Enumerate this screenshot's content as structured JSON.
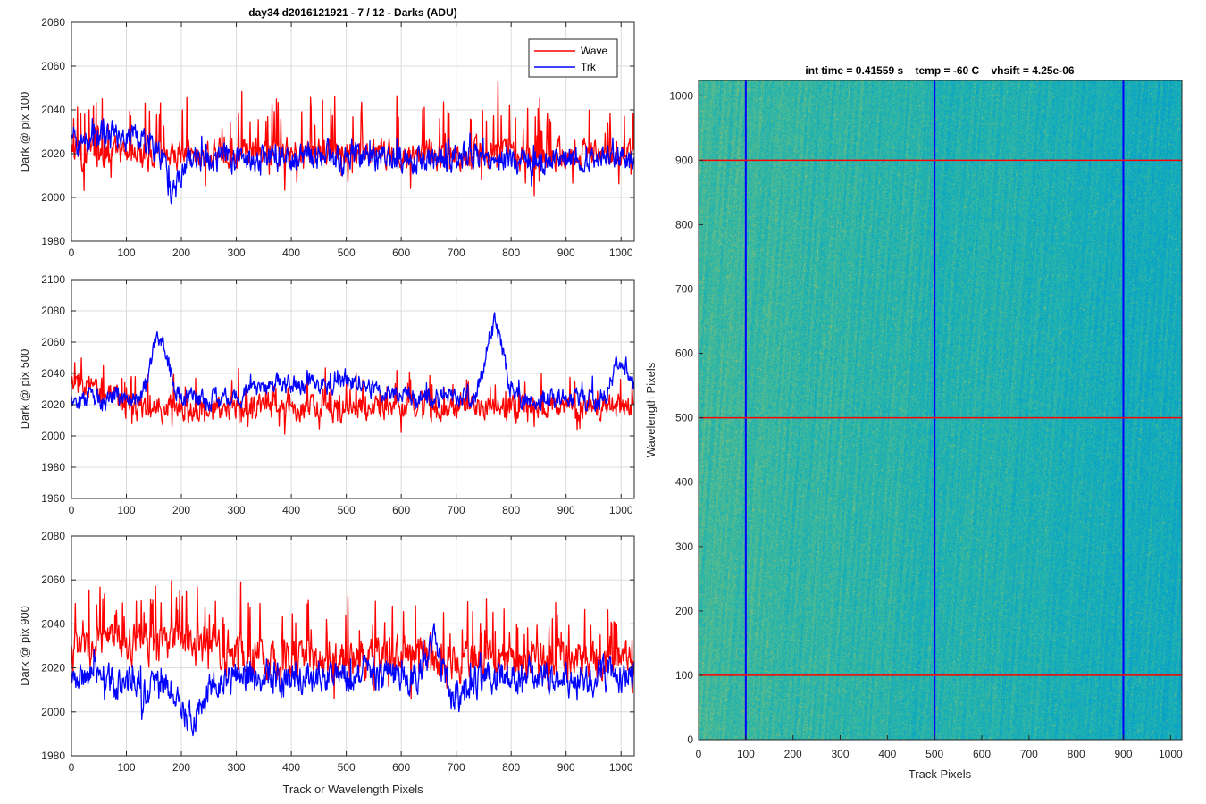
{
  "chart_data": [
    {
      "type": "line",
      "title": "day34 d2016121921 - 7 / 12 - Darks (ADU)",
      "ylabel": "Dark @ pix 100",
      "xlabel": "",
      "xlim": [
        0,
        1024
      ],
      "ylim": [
        1980,
        2080
      ],
      "xticks": [
        0,
        100,
        200,
        300,
        400,
        500,
        600,
        700,
        800,
        900,
        1000
      ],
      "yticks": [
        1980,
        2000,
        2020,
        2040,
        2060,
        2080
      ],
      "grid": true,
      "legend": "top-right",
      "series": [
        {
          "name": "Wave",
          "color": "#ff0000",
          "mean": 2020,
          "noise": 5,
          "spike_prob": 0.12,
          "spike_amp": 22,
          "bumps": []
        },
        {
          "name": "Trk",
          "color": "#0000ff",
          "mean": 2018,
          "noise": 5,
          "spike_prob": 0.03,
          "spike_amp": 8,
          "bumps": [
            [
              40,
              8,
              80
            ],
            [
              185,
              -18,
              12
            ],
            [
              110,
              5,
              30
            ]
          ]
        }
      ]
    },
    {
      "type": "line",
      "title": "",
      "ylabel": "Dark @ pix 500",
      "xlabel": "",
      "xlim": [
        0,
        1024
      ],
      "ylim": [
        1960,
        2100
      ],
      "xticks": [
        0,
        100,
        200,
        300,
        400,
        500,
        600,
        700,
        800,
        900,
        1000
      ],
      "yticks": [
        1960,
        1980,
        2000,
        2020,
        2040,
        2060,
        2080,
        2100
      ],
      "grid": true,
      "series": [
        {
          "name": "Wave",
          "color": "#ff0000",
          "mean": 2018,
          "noise": 6,
          "spike_prob": 0.1,
          "spike_amp": 18,
          "bumps": [
            [
              20,
              15,
              40
            ]
          ]
        },
        {
          "name": "Trk",
          "color": "#0000ff",
          "mean": 2024,
          "noise": 5,
          "spike_prob": 0.03,
          "spike_amp": 8,
          "bumps": [
            [
              160,
              40,
              15
            ],
            [
              770,
              50,
              15
            ],
            [
              500,
              10,
              60
            ],
            [
              1000,
              25,
              15
            ],
            [
              380,
              8,
              40
            ]
          ]
        }
      ]
    },
    {
      "type": "line",
      "title": "",
      "ylabel": "Dark @ pix 900",
      "xlabel": "Track or Wavelength Pixels",
      "xlim": [
        0,
        1024
      ],
      "ylim": [
        1980,
        2080
      ],
      "xticks": [
        0,
        100,
        200,
        300,
        400,
        500,
        600,
        700,
        800,
        900,
        1000
      ],
      "yticks": [
        1980,
        2000,
        2020,
        2040,
        2060,
        2080
      ],
      "grid": true,
      "series": [
        {
          "name": "Wave",
          "color": "#ff0000",
          "mean": 2024,
          "noise": 7,
          "spike_prob": 0.12,
          "spike_amp": 20,
          "bumps": [
            [
              150,
              8,
              120
            ]
          ]
        },
        {
          "name": "Trk",
          "color": "#0000ff",
          "mean": 2016,
          "noise": 6,
          "spike_prob": 0.03,
          "spike_amp": 10,
          "bumps": [
            [
              215,
              -18,
              20
            ],
            [
              660,
              15,
              15
            ],
            [
              700,
              -10,
              20
            ],
            [
              130,
              -6,
              30
            ]
          ]
        }
      ]
    },
    {
      "type": "heatmap",
      "title": "int time = 0.41559 s    temp = -60 C    vhsift = 4.25e-06",
      "xlabel": "Track Pixels",
      "ylabel": "Wavelength Pixels",
      "xlim": [
        0,
        1024
      ],
      "ylim": [
        0,
        1024
      ],
      "xticks": [
        0,
        100,
        200,
        300,
        400,
        500,
        600,
        700,
        800,
        900,
        1000
      ],
      "yticks": [
        0,
        100,
        200,
        300,
        400,
        500,
        600,
        700,
        800,
        900,
        1000
      ],
      "colormap": "parula",
      "value_range": [
        0.3,
        0.85
      ],
      "vertical_lines": {
        "color": "#0000ff",
        "x": [
          100,
          500,
          900
        ]
      },
      "horizontal_lines": {
        "color": "#ff0000",
        "y": [
          100,
          500,
          900
        ]
      }
    }
  ]
}
